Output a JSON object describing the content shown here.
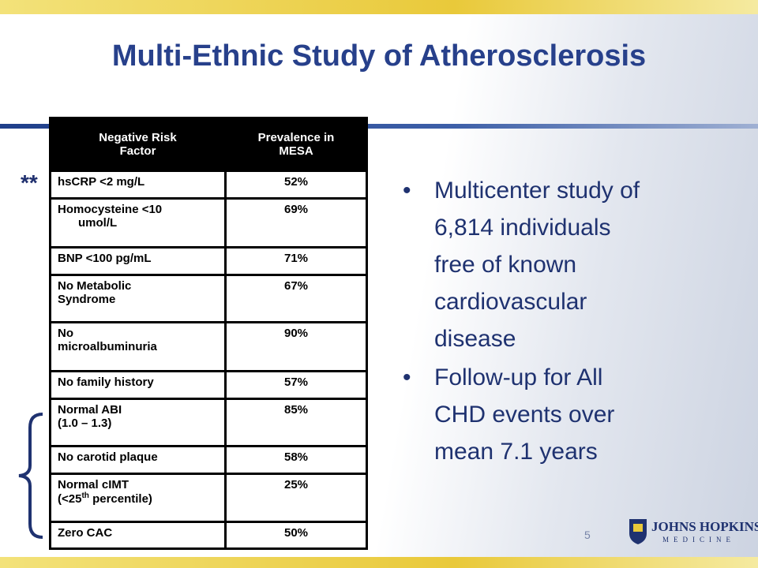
{
  "header": {
    "title": "Multi-Ethnic Study of Atherosclerosis"
  },
  "table": {
    "columns": [
      [
        "Negative Risk",
        "Factor"
      ],
      [
        "Prevalence in",
        "MESA"
      ]
    ],
    "rows": [
      {
        "factor": [
          "hsCRP <2 mg/L"
        ],
        "prevalence": "52%"
      },
      {
        "factor": [
          "Homocysteine <10",
          "umol/L"
        ],
        "prevalence": "69%"
      },
      {
        "factor": [
          "BNP <100 pg/mL"
        ],
        "prevalence": "71%"
      },
      {
        "factor": [
          "No Metabolic",
          "Syndrome"
        ],
        "prevalence": "67%"
      },
      {
        "factor": [
          "No",
          "microalbuminuria"
        ],
        "prevalence": "90%"
      },
      {
        "factor": [
          "No family history"
        ],
        "prevalence": "57%"
      },
      {
        "factor": [
          "Normal ABI",
          "(1.0 – 1.3)"
        ],
        "prevalence": "85%"
      },
      {
        "factor": [
          "No carotid plaque"
        ],
        "prevalence": "58%"
      },
      {
        "factor": [
          "Normal cIMT"
        ],
        "factor_extra": [
          "(<25",
          "th",
          " percentile)"
        ],
        "prevalence": "25%"
      },
      {
        "factor": [
          "Zero CAC"
        ],
        "prevalence": "50%"
      }
    ]
  },
  "marker": "**",
  "bullets": [
    [
      "Multicenter study of",
      "6,814 individuals",
      "free of known",
      "cardiovascular",
      "disease"
    ],
    [
      "Follow-up for All",
      "CHD events over",
      "mean 7.1 years"
    ]
  ],
  "page_number": "5",
  "logo": {
    "name": "JOHNS HOPKINS",
    "sub": "MEDICINE"
  }
}
